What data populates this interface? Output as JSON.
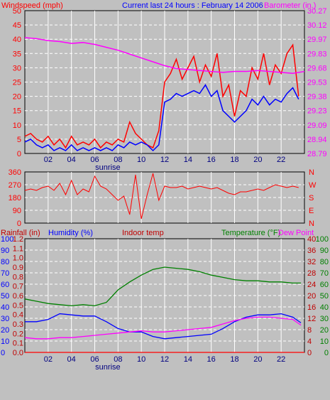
{
  "header": {
    "windspeed_label": "Windspeed (mph)",
    "title": "Current last 24 hours : February 14 2006",
    "barometer_label": "Barometer (in.)"
  },
  "colors": {
    "background": "#c0c0c0",
    "plot": "#c0c0c0",
    "grid": "#ffffff",
    "red": "#ff0000",
    "blue": "#0000ff",
    "magenta": "#ff00ff",
    "green": "#008000",
    "dark_red": "#c00000",
    "dark_green": "#008000"
  },
  "chart_data": [
    {
      "type": "line",
      "name": "wind-barometer",
      "xlim": [
        0,
        24
      ],
      "x_ticks": [
        "02",
        "04",
        "06",
        "08",
        "10",
        "12",
        "14",
        "16",
        "18",
        "20",
        "22"
      ],
      "sunrise_label": "sunrise",
      "sunrise_hour": 7,
      "y_left": {
        "label": "Windspeed (mph)",
        "range": [
          0,
          50
        ],
        "ticks": [
          "0",
          "5",
          "10",
          "15",
          "20",
          "25",
          "30",
          "35",
          "40",
          "45",
          "50"
        ]
      },
      "y_right": {
        "label": "Barometer (in.)",
        "range": [
          28.79,
          30.27
        ],
        "ticks": [
          "28.79",
          "28.94",
          "29.09",
          "29.23",
          "29.38",
          "29.53",
          "29.68",
          "29.83",
          "29.97",
          "30.12",
          "30.27"
        ]
      },
      "series": [
        {
          "color": "red",
          "axis": "left",
          "x": [
            0,
            0.5,
            1,
            1.5,
            2,
            2.5,
            3,
            3.5,
            4,
            4.5,
            5,
            5.5,
            6,
            6.5,
            7,
            7.5,
            8,
            8.5,
            9,
            9.5,
            10,
            10.5,
            11,
            11.5,
            12,
            12.5,
            13,
            13.5,
            14,
            14.5,
            15,
            15.5,
            16,
            16.5,
            17,
            17.5,
            18,
            18.5,
            19,
            19.5,
            20,
            20.5,
            21,
            21.5,
            22,
            22.5,
            23,
            23.5
          ],
          "y": [
            6,
            7,
            5,
            4,
            6,
            3,
            5,
            2,
            6,
            3,
            4,
            3,
            5,
            2,
            4,
            3,
            5,
            4,
            11,
            7,
            5,
            3,
            2,
            8,
            25,
            28,
            33,
            26,
            30,
            34,
            25,
            31,
            27,
            35,
            20,
            24,
            13,
            22,
            20,
            30,
            26,
            35,
            24,
            31,
            28,
            35,
            38,
            20
          ]
        },
        {
          "color": "blue",
          "axis": "left",
          "x": [
            0,
            0.5,
            1,
            1.5,
            2,
            2.5,
            3,
            3.5,
            4,
            4.5,
            5,
            5.5,
            6,
            6.5,
            7,
            7.5,
            8,
            8.5,
            9,
            9.5,
            10,
            10.5,
            11,
            11.5,
            12,
            12.5,
            13,
            13.5,
            14,
            14.5,
            15,
            15.5,
            16,
            16.5,
            17,
            17.5,
            18,
            18.5,
            19,
            19.5,
            20,
            20.5,
            21,
            21.5,
            22,
            22.5,
            23,
            23.5
          ],
          "y": [
            4,
            5,
            3,
            2,
            3,
            1,
            2,
            1,
            3,
            1,
            2,
            1,
            2,
            1,
            2,
            1,
            3,
            2,
            4,
            3,
            4,
            3,
            1,
            3,
            18,
            19,
            21,
            20,
            21,
            22,
            21,
            24,
            20,
            22,
            15,
            13,
            11,
            13,
            15,
            19,
            17,
            20,
            17,
            19,
            18,
            21,
            23,
            19
          ]
        },
        {
          "color": "magenta",
          "axis": "right",
          "x": [
            0,
            1,
            2,
            3,
            4,
            5,
            6,
            7,
            8,
            9,
            10,
            11,
            12,
            13,
            14,
            15,
            16,
            17,
            18,
            19,
            20,
            21,
            22,
            23,
            24
          ],
          "y": [
            29.99,
            29.98,
            29.96,
            29.95,
            29.93,
            29.94,
            29.92,
            29.89,
            29.86,
            29.82,
            29.78,
            29.74,
            29.7,
            29.67,
            29.66,
            29.65,
            29.64,
            29.63,
            29.64,
            29.64,
            29.65,
            29.64,
            29.63,
            29.62,
            29.64
          ]
        }
      ]
    },
    {
      "type": "scatter",
      "name": "wind-direction",
      "xlim": [
        0,
        24
      ],
      "y_left": {
        "range": [
          0,
          360
        ],
        "ticks": [
          "0",
          "90",
          "180",
          "270",
          "360"
        ]
      },
      "y_right_labels": [
        "N",
        "W",
        "S",
        "E",
        "N"
      ],
      "series": [
        {
          "color": "red",
          "x": [
            0,
            0.5,
            1,
            1.5,
            2,
            2.5,
            3,
            3.5,
            4,
            4.5,
            5,
            5.5,
            6,
            6.5,
            7,
            7.5,
            8,
            8.5,
            9,
            9.5,
            10,
            10.5,
            11,
            11.5,
            12,
            12.5,
            13,
            13.5,
            14,
            14.5,
            15,
            15.5,
            16,
            16.5,
            17,
            17.5,
            18,
            18.5,
            19,
            19.5,
            20,
            20.5,
            21,
            21.5,
            22,
            22.5,
            23,
            23.5
          ],
          "y": [
            230,
            240,
            230,
            250,
            260,
            230,
            280,
            200,
            300,
            200,
            240,
            220,
            330,
            260,
            240,
            200,
            160,
            190,
            60,
            340,
            30,
            200,
            350,
            160,
            260,
            250,
            250,
            260,
            240,
            250,
            260,
            250,
            240,
            250,
            230,
            210,
            200,
            220,
            220,
            230,
            240,
            230,
            250,
            270,
            260,
            250,
            260,
            250
          ]
        }
      ]
    },
    {
      "type": "line",
      "name": "rain-humidity-temp",
      "xlim": [
        0,
        24
      ],
      "x_ticks": [
        "02",
        "04",
        "06",
        "08",
        "10",
        "12",
        "14",
        "16",
        "18",
        "20",
        "22"
      ],
      "sunrise_label": "sunrise",
      "labels": {
        "rainfall": "Rainfall (in)",
        "humidity": "Humidity (%)",
        "indoor": "Indoor temp",
        "temperature": "Temperature (°F)",
        "dewpoint": "Dew Point"
      },
      "y_rain": {
        "range": [
          0,
          1.2
        ],
        "ticks": [
          "0.0",
          "0.1",
          "0.2",
          "0.3",
          "0.4",
          "0.5",
          "0.6",
          "0.7",
          "0.8",
          "0.9",
          "1.0",
          "1.1",
          "1.2"
        ]
      },
      "y_humidity": {
        "range": [
          0,
          100
        ],
        "ticks": [
          "0",
          "10",
          "20",
          "30",
          "40",
          "50",
          "60",
          "70",
          "80",
          "90",
          "100"
        ]
      },
      "y_indoor": {
        "range": [
          0,
          40
        ],
        "ticks": [
          "0",
          "4",
          "8",
          "12",
          "16",
          "20",
          "24",
          "28",
          "32",
          "36",
          "40"
        ]
      },
      "y_temp": {
        "range": [
          0,
          100
        ],
        "ticks": [
          "0",
          "10",
          "20",
          "30",
          "40",
          "50",
          "60",
          "70",
          "80",
          "90",
          "100"
        ]
      },
      "series": [
        {
          "color": "green",
          "axis": "temp",
          "x": [
            0,
            1,
            2,
            3,
            4,
            5,
            6,
            7,
            8,
            9,
            10,
            11,
            12,
            13,
            14,
            15,
            16,
            17,
            18,
            19,
            20,
            21,
            22,
            23,
            23.7
          ],
          "y": [
            47,
            45,
            43,
            42,
            41,
            42,
            41,
            44,
            55,
            62,
            68,
            73,
            75,
            74,
            73,
            71,
            68,
            66,
            64,
            63,
            63,
            62,
            62,
            61,
            61
          ]
        },
        {
          "color": "blue",
          "axis": "temp",
          "x": [
            0,
            1,
            2,
            3,
            4,
            5,
            6,
            7,
            8,
            9,
            10,
            11,
            12,
            13,
            14,
            15,
            16,
            17,
            18,
            19,
            20,
            21,
            22,
            23,
            23.7
          ],
          "y": [
            27,
            27,
            29,
            34,
            33,
            32,
            32,
            27,
            21,
            18,
            18,
            14,
            12,
            13,
            14,
            15,
            16,
            21,
            27,
            31,
            33,
            33,
            34,
            31,
            26
          ]
        },
        {
          "color": "magenta",
          "axis": "temp",
          "x": [
            0,
            1,
            2,
            3,
            4,
            5,
            6,
            7,
            8,
            9,
            10,
            11,
            12,
            13,
            14,
            15,
            16,
            17,
            18,
            19,
            20,
            21,
            22,
            23,
            23.7
          ],
          "y": [
            13,
            12,
            12,
            13,
            13,
            14,
            15,
            16,
            17,
            18,
            19,
            18,
            18,
            19,
            20,
            21,
            22,
            25,
            28,
            30,
            31,
            31,
            30,
            29,
            24
          ]
        },
        {
          "color": "red",
          "axis": "rain",
          "x": [
            0,
            24
          ],
          "y": [
            0,
            0
          ]
        }
      ]
    }
  ]
}
